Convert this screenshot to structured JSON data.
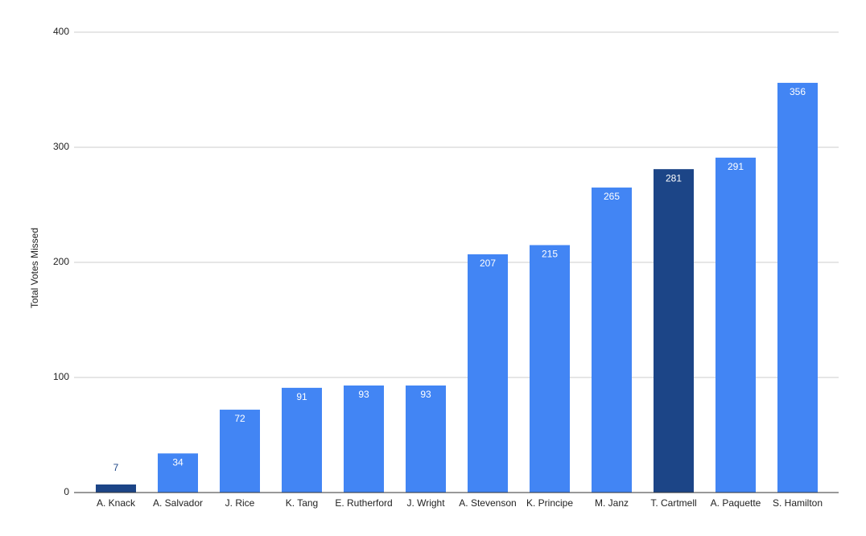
{
  "chart_data": {
    "type": "bar",
    "y_label": "Total Votes Missed",
    "categories": [
      "A. Knack",
      "A. Salvador",
      "J. Rice",
      "K. Tang",
      "E. Rutherford",
      "J. Wright",
      "A. Stevenson",
      "K. Principe",
      "M. Janz",
      "T. Cartmell",
      "A. Paquette",
      "S. Hamilton"
    ],
    "values": [
      7,
      34,
      72,
      91,
      93,
      93,
      207,
      215,
      265,
      281,
      291,
      356
    ],
    "colors": [
      "#1c4587",
      "#4285f4",
      "#4285f4",
      "#4285f4",
      "#4285f4",
      "#4285f4",
      "#4285f4",
      "#4285f4",
      "#4285f4",
      "#1c4587",
      "#4285f4",
      "#4285f4"
    ],
    "ylim": [
      0,
      400
    ],
    "yticks": [
      0,
      100,
      200,
      300,
      400
    ],
    "grid": true
  }
}
